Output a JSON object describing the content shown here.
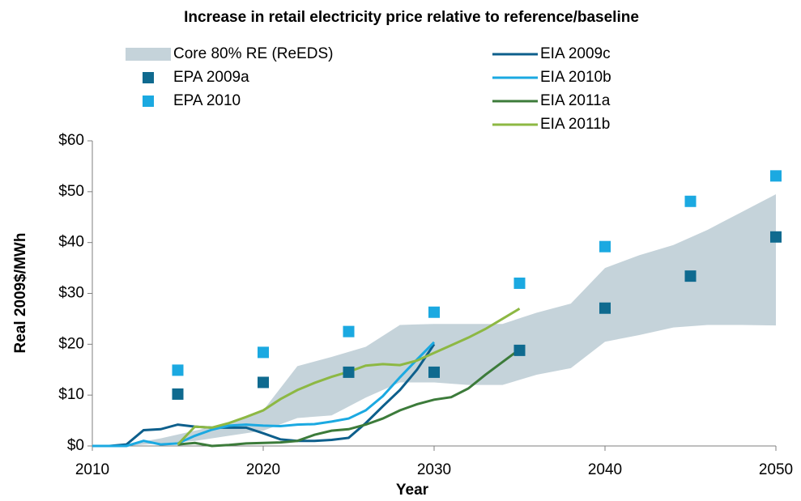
{
  "chart_data": {
    "type": "line",
    "title": "Increase in retail electricity price relative to reference/baseline",
    "x_label": "Year",
    "y_label": "Real 2009$/MWh",
    "xlim": [
      2010,
      2050
    ],
    "xticks": [
      2010,
      2020,
      2030,
      2040,
      2050
    ],
    "ylim": [
      0,
      60
    ],
    "yticks": [
      {
        "value": 0,
        "label": "$0"
      },
      {
        "value": 10,
        "label": "$10"
      },
      {
        "value": 20,
        "label": "$20"
      },
      {
        "value": 30,
        "label": "$30"
      },
      {
        "value": 40,
        "label": "$40"
      },
      {
        "value": 50,
        "label": "$50"
      },
      {
        "value": 60,
        "label": "$60"
      }
    ],
    "series": [
      {
        "name": "Core 80% RE (ReEDS)",
        "type": "band",
        "color": "#c5d3da",
        "x": [
          2010,
          2012,
          2014,
          2016,
          2018,
          2020,
          2022,
          2024,
          2026,
          2028,
          2030,
          2032,
          2034,
          2036,
          2038,
          2040,
          2042,
          2044,
          2046,
          2048,
          2050
        ],
        "lower": [
          0,
          0,
          0.5,
          1,
          2,
          3,
          5.5,
          6,
          9.5,
          12.5,
          12.5,
          12,
          12,
          14,
          15.3,
          20.5,
          21.8,
          23.3,
          23.8,
          23.8,
          23.7
        ],
        "upper": [
          0,
          0.3,
          1.5,
          3,
          4.5,
          7,
          15.7,
          17.5,
          19.5,
          23.8,
          24,
          24,
          24,
          26.2,
          28,
          35,
          37.5,
          39.5,
          42.5,
          46,
          49.5
        ]
      },
      {
        "name": "EPA 2009a",
        "type": "scatter",
        "color": "#0f6a8f",
        "x": [
          2015,
          2020,
          2025,
          2030,
          2035,
          2040,
          2045,
          2050
        ],
        "values": [
          10.2,
          12.5,
          14.5,
          14.5,
          18.8,
          27.1,
          33.4,
          41.1
        ]
      },
      {
        "name": "EPA 2010",
        "type": "scatter",
        "color": "#1ba9e1",
        "x": [
          2015,
          2020,
          2025,
          2030,
          2035,
          2040,
          2045,
          2050
        ],
        "values": [
          14.9,
          18.4,
          22.5,
          26.3,
          32,
          39.2,
          48.1,
          53.1
        ]
      },
      {
        "name": "EIA 2009c",
        "type": "line",
        "color": "#0d5f8c",
        "x": [
          2010,
          2011,
          2012,
          2013,
          2014,
          2015,
          2016,
          2017,
          2018,
          2019,
          2020,
          2021,
          2022,
          2023,
          2024,
          2025,
          2026,
          2027,
          2028,
          2029,
          2030
        ],
        "values": [
          0,
          0,
          0.3,
          3.1,
          3.3,
          4.2,
          3.8,
          3.6,
          3.6,
          3.6,
          2.5,
          1.3,
          1,
          1,
          1.2,
          1.6,
          4.5,
          7.8,
          11,
          15,
          20
        ]
      },
      {
        "name": "EIA 2010b",
        "type": "line",
        "color": "#1ba9e1",
        "x": [
          2010,
          2011,
          2012,
          2013,
          2014,
          2015,
          2016,
          2017,
          2018,
          2019,
          2020,
          2021,
          2022,
          2023,
          2024,
          2025,
          2026,
          2027,
          2028,
          2029,
          2030
        ],
        "values": [
          0,
          0,
          0,
          1,
          0.3,
          0.5,
          2,
          3.2,
          4,
          4.2,
          4,
          3.9,
          4.2,
          4.3,
          4.8,
          5.4,
          7,
          9.8,
          13.5,
          17,
          20.4
        ]
      },
      {
        "name": "EIA 2011a",
        "type": "line",
        "color": "#3c7b3a",
        "x": [
          2015,
          2016,
          2017,
          2018,
          2019,
          2020,
          2021,
          2022,
          2023,
          2024,
          2025,
          2026,
          2027,
          2028,
          2029,
          2030,
          2031,
          2032,
          2033,
          2034,
          2035
        ],
        "values": [
          0.3,
          0.6,
          0,
          0.2,
          0.5,
          0.6,
          0.7,
          1,
          2.2,
          3,
          3.3,
          4.2,
          5.4,
          7,
          8.2,
          9.1,
          9.6,
          11.3,
          14,
          16.5,
          19
        ]
      },
      {
        "name": "EIA 2011b",
        "type": "line",
        "color": "#8db843",
        "x": [
          2015,
          2016,
          2017,
          2018,
          2019,
          2020,
          2021,
          2022,
          2023,
          2024,
          2025,
          2026,
          2027,
          2028,
          2029,
          2030,
          2031,
          2032,
          2033,
          2034,
          2035
        ],
        "values": [
          0.3,
          3.8,
          3.6,
          4.5,
          5.7,
          7,
          9.2,
          11,
          12.4,
          13.6,
          14.6,
          15.8,
          16.1,
          15.9,
          16.8,
          18.3,
          19.8,
          21.3,
          23,
          25,
          27
        ]
      }
    ]
  }
}
